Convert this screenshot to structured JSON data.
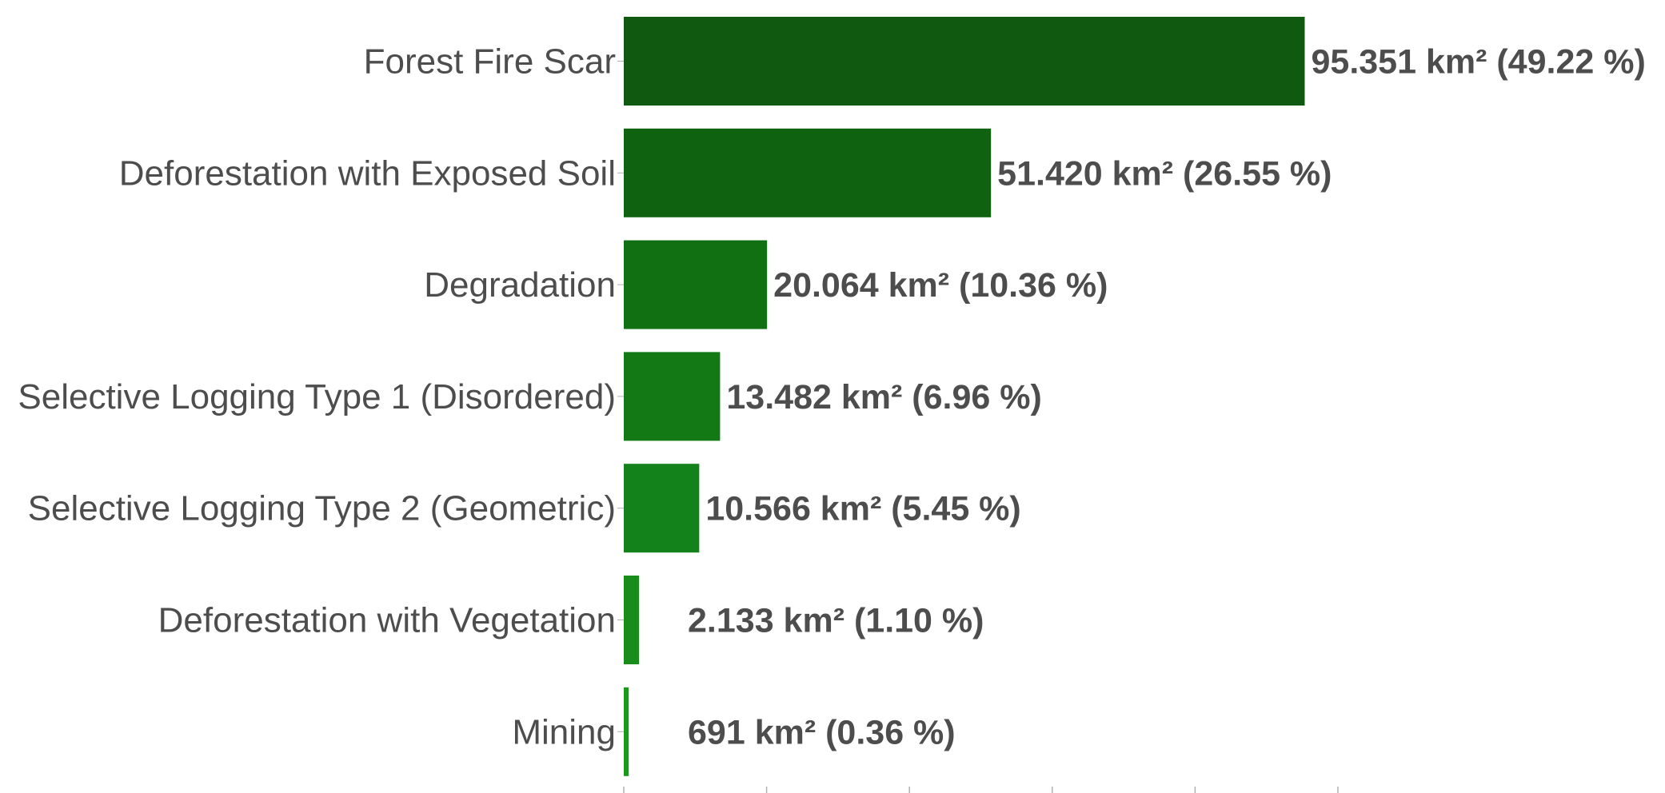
{
  "chart_data": {
    "type": "bar",
    "orientation": "horizontal",
    "title": "",
    "xlabel": "",
    "ylabel": "",
    "grid": false,
    "legend": "none",
    "xlim": [
      0,
      100
    ],
    "xticks": [
      0,
      20,
      40,
      60,
      80,
      100
    ],
    "categories": [
      "Forest Fire Scar",
      "Deforestation with Exposed Soil",
      "Degradation",
      "Selective Logging Type 1 (Disordered)",
      "Selective Logging Type 2 (Geometric)",
      "Deforestation with Vegetation",
      "Mining"
    ],
    "values": [
      95.351,
      51.42,
      20.064,
      13.482,
      10.566,
      2.133,
      0.691
    ],
    "data_labels": [
      "95.351 km² (49.22 %)",
      "51.420 km² (26.55 %)",
      "20.064 km² (10.36 %)",
      "13.482 km² (6.96 %)",
      "10.566 km² (5.45 %)",
      "2.133 km² (1.10 %)",
      "691 km² (0.36 %)"
    ],
    "colors": [
      "#0f5a10",
      "#0f6310",
      "#117012",
      "#137914",
      "#14821a",
      "#188d1b",
      "#199a1d"
    ]
  }
}
